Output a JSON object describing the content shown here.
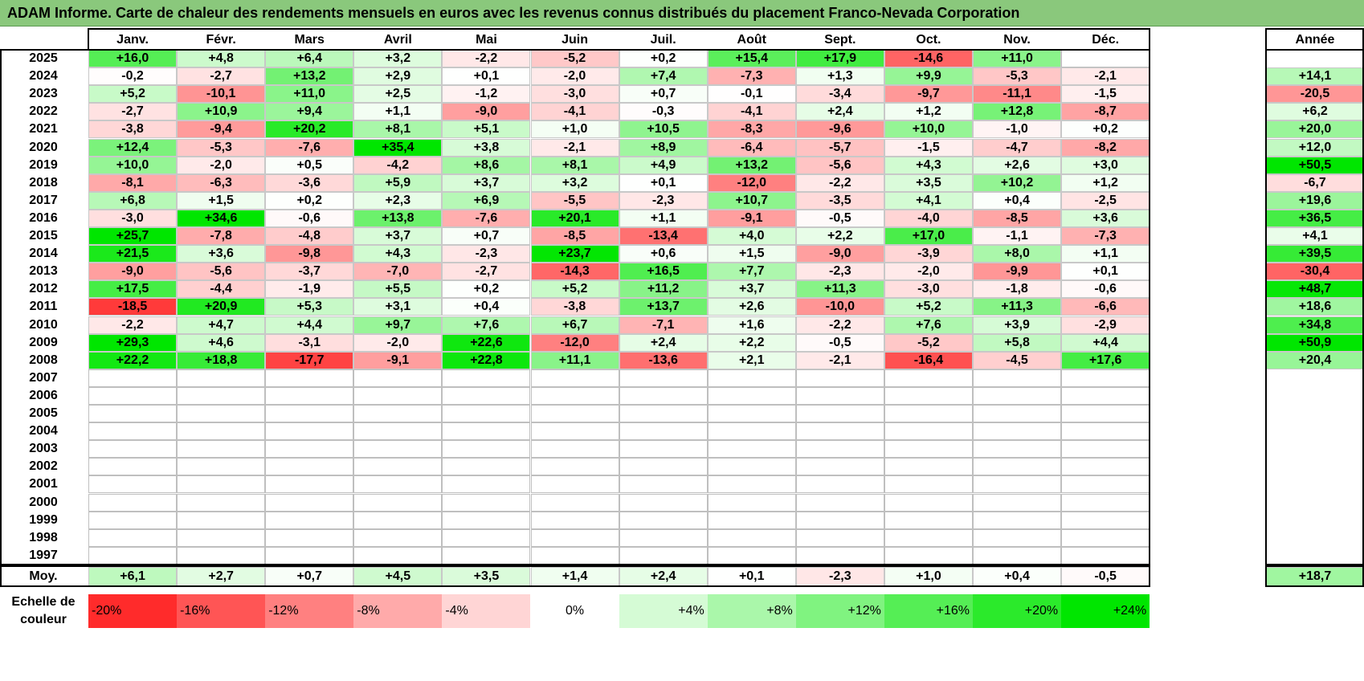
{
  "title": "ADAM Informe. Carte de chaleur des rendements mensuels en euros avec les revenus connus distribués du placement Franco-Nevada Corporation",
  "chart_data": {
    "type": "heatmap",
    "title": "ADAM Informe. Carte de chaleur des rendements mensuels en euros avec les revenus connus distribués du placement Franco-Nevada Corporation",
    "months": [
      "Janv.",
      "Févr.",
      "Mars",
      "Avril",
      "Mai",
      "Juin",
      "Juil.",
      "Août",
      "Sept.",
      "Oct.",
      "Nov.",
      "Déc."
    ],
    "year_header": "Année",
    "rows": [
      {
        "year": "2025",
        "values": [
          "+16,0",
          "+4,8",
          "+6,4",
          "+3,2",
          "-2,2",
          "-5,2",
          "+0,2",
          "+15,4",
          "+17,9",
          "-14,6",
          "+11,0",
          ""
        ],
        "annual": ""
      },
      {
        "year": "2024",
        "values": [
          "-0,2",
          "-2,7",
          "+13,2",
          "+2,9",
          "+0,1",
          "-2,0",
          "+7,4",
          "-7,3",
          "+1,3",
          "+9,9",
          "-5,3",
          "-2,1"
        ],
        "annual": "+14,1"
      },
      {
        "year": "2023",
        "values": [
          "+5,2",
          "-10,1",
          "+11,0",
          "+2,5",
          "-1,2",
          "-3,0",
          "+0,7",
          "-0,1",
          "-3,4",
          "-9,7",
          "-11,1",
          "-1,5"
        ],
        "annual": "-20,5"
      },
      {
        "year": "2022",
        "values": [
          "-2,7",
          "+10,9",
          "+9,4",
          "+1,1",
          "-9,0",
          "-4,1",
          "-0,3",
          "-4,1",
          "+2,4",
          "+1,2",
          "+12,8",
          "-8,7"
        ],
        "annual": "+6,2"
      },
      {
        "year": "2021",
        "values": [
          "-3,8",
          "-9,4",
          "+20,2",
          "+8,1",
          "+5,1",
          "+1,0",
          "+10,5",
          "-8,3",
          "-9,6",
          "+10,0",
          "-1,0",
          "+0,2"
        ],
        "annual": "+20,0"
      },
      {
        "year": "2020",
        "values": [
          "+12,4",
          "-5,3",
          "-7,6",
          "+35,4",
          "+3,8",
          "-2,1",
          "+8,9",
          "-6,4",
          "-5,7",
          "-1,5",
          "-4,7",
          "-8,2"
        ],
        "annual": "+12,0"
      },
      {
        "year": "2019",
        "values": [
          "+10,0",
          "-2,0",
          "+0,5",
          "-4,2",
          "+8,6",
          "+8,1",
          "+4,9",
          "+13,2",
          "-5,6",
          "+4,3",
          "+2,6",
          "+3,0"
        ],
        "annual": "+50,5"
      },
      {
        "year": "2018",
        "values": [
          "-8,1",
          "-6,3",
          "-3,6",
          "+5,9",
          "+3,7",
          "+3,2",
          "+0,1",
          "-12,0",
          "-2,2",
          "+3,5",
          "+10,2",
          "+1,2"
        ],
        "annual": "-6,7"
      },
      {
        "year": "2017",
        "values": [
          "+6,8",
          "+1,5",
          "+0,2",
          "+2,3",
          "+6,9",
          "-5,5",
          "-2,3",
          "+10,7",
          "-3,5",
          "+4,1",
          "+0,4",
          "-2,5"
        ],
        "annual": "+19,6"
      },
      {
        "year": "2016",
        "values": [
          "-3,0",
          "+34,6",
          "-0,6",
          "+13,8",
          "-7,6",
          "+20,1",
          "+1,1",
          "-9,1",
          "-0,5",
          "-4,0",
          "-8,5",
          "+3,6"
        ],
        "annual": "+36,5"
      },
      {
        "year": "2015",
        "values": [
          "+25,7",
          "-7,8",
          "-4,8",
          "+3,7",
          "+0,7",
          "-8,5",
          "-13,4",
          "+4,0",
          "+2,2",
          "+17,0",
          "-1,1",
          "-7,3"
        ],
        "annual": "+4,1"
      },
      {
        "year": "2014",
        "values": [
          "+21,5",
          "+3,6",
          "-9,8",
          "+4,3",
          "-2,3",
          "+23,7",
          "+0,6",
          "+1,5",
          "-9,0",
          "-3,9",
          "+8,0",
          "+1,1"
        ],
        "annual": "+39,5"
      },
      {
        "year": "2013",
        "values": [
          "-9,0",
          "-5,6",
          "-3,7",
          "-7,0",
          "-2,7",
          "-14,3",
          "+16,5",
          "+7,7",
          "-2,3",
          "-2,0",
          "-9,9",
          "+0,1"
        ],
        "annual": "-30,4"
      },
      {
        "year": "2012",
        "values": [
          "+17,5",
          "-4,4",
          "-1,9",
          "+5,5",
          "+0,2",
          "+5,2",
          "+11,2",
          "+3,7",
          "+11,3",
          "-3,0",
          "-1,8",
          "-0,6"
        ],
        "annual": "+48,7"
      },
      {
        "year": "2011",
        "values": [
          "-18,5",
          "+20,9",
          "+5,3",
          "+3,1",
          "+0,4",
          "-3,8",
          "+13,7",
          "+2,6",
          "-10,0",
          "+5,2",
          "+11,3",
          "-6,6"
        ],
        "annual": "+18,6"
      },
      {
        "year": "2010",
        "values": [
          "-2,2",
          "+4,7",
          "+4,4",
          "+9,7",
          "+7,6",
          "+6,7",
          "-7,1",
          "+1,6",
          "-2,2",
          "+7,6",
          "+3,9",
          "-2,9"
        ],
        "annual": "+34,8"
      },
      {
        "year": "2009",
        "values": [
          "+29,3",
          "+4,6",
          "-3,1",
          "-2,0",
          "+22,6",
          "-12,0",
          "+2,4",
          "+2,2",
          "-0,5",
          "-5,2",
          "+5,8",
          "+4,4"
        ],
        "annual": "+50,9"
      },
      {
        "year": "2008",
        "values": [
          "+22,2",
          "+18,8",
          "-17,7",
          "-9,1",
          "+22,8",
          "+11,1",
          "-13,6",
          "+2,1",
          "-2,1",
          "-16,4",
          "-4,5",
          "+17,6"
        ],
        "annual": "+20,4"
      },
      {
        "year": "2007",
        "values": [
          "",
          "",
          "",
          "",
          "",
          "",
          "",
          "",
          "",
          "",
          "",
          ""
        ],
        "annual": ""
      },
      {
        "year": "2006",
        "values": [
          "",
          "",
          "",
          "",
          "",
          "",
          "",
          "",
          "",
          "",
          "",
          ""
        ],
        "annual": ""
      },
      {
        "year": "2005",
        "values": [
          "",
          "",
          "",
          "",
          "",
          "",
          "",
          "",
          "",
          "",
          "",
          ""
        ],
        "annual": ""
      },
      {
        "year": "2004",
        "values": [
          "",
          "",
          "",
          "",
          "",
          "",
          "",
          "",
          "",
          "",
          "",
          ""
        ],
        "annual": ""
      },
      {
        "year": "2003",
        "values": [
          "",
          "",
          "",
          "",
          "",
          "",
          "",
          "",
          "",
          "",
          "",
          ""
        ],
        "annual": ""
      },
      {
        "year": "2002",
        "values": [
          "",
          "",
          "",
          "",
          "",
          "",
          "",
          "",
          "",
          "",
          "",
          ""
        ],
        "annual": ""
      },
      {
        "year": "2001",
        "values": [
          "",
          "",
          "",
          "",
          "",
          "",
          "",
          "",
          "",
          "",
          "",
          ""
        ],
        "annual": ""
      },
      {
        "year": "2000",
        "values": [
          "",
          "",
          "",
          "",
          "",
          "",
          "",
          "",
          "",
          "",
          "",
          ""
        ],
        "annual": ""
      },
      {
        "year": "1999",
        "values": [
          "",
          "",
          "",
          "",
          "",
          "",
          "",
          "",
          "",
          "",
          "",
          ""
        ],
        "annual": ""
      },
      {
        "year": "1998",
        "values": [
          "",
          "",
          "",
          "",
          "",
          "",
          "",
          "",
          "",
          "",
          "",
          ""
        ],
        "annual": ""
      },
      {
        "year": "1997",
        "values": [
          "",
          "",
          "",
          "",
          "",
          "",
          "",
          "",
          "",
          "",
          "",
          ""
        ],
        "annual": ""
      }
    ],
    "average": {
      "label": "Moy.",
      "values": [
        "+6,1",
        "+2,7",
        "+0,7",
        "+4,5",
        "+3,5",
        "+1,4",
        "+2,4",
        "+0,1",
        "-2,3",
        "+1,0",
        "+0,4",
        "-0,5"
      ],
      "annual": "+18,7"
    },
    "color_scale": {
      "label_lines": [
        "Echelle de",
        "couleur"
      ],
      "stops": [
        "-20%",
        "-16%",
        "-12%",
        "-8%",
        "-4%",
        "0%",
        "+4%",
        "+8%",
        "+12%",
        "+16%",
        "+20%",
        "+24%"
      ],
      "negative_color": "#ff0000",
      "zero_color": "#ffffff",
      "positive_color": "#00e600",
      "monthly_max": 24,
      "annual_max": 50
    }
  }
}
